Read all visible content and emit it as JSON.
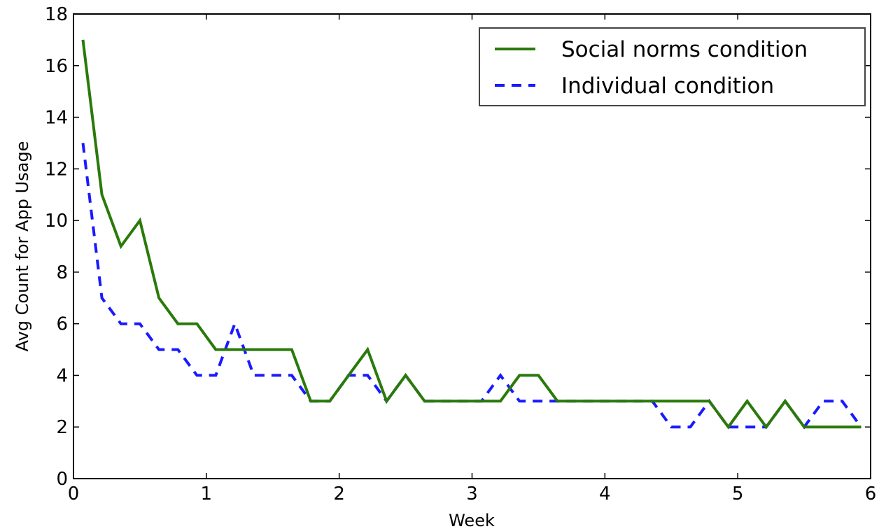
{
  "chart_data": {
    "type": "line",
    "title": "",
    "xlabel": "Week",
    "ylabel": "Avg Count for App Usage",
    "xlim": [
      0,
      6
    ],
    "ylim": [
      0,
      18
    ],
    "xticks": [
      "0",
      "1",
      "2",
      "3",
      "4",
      "5",
      "6"
    ],
    "yticks": [
      "0",
      "2",
      "4",
      "6",
      "8",
      "10",
      "12",
      "14",
      "16",
      "18"
    ],
    "grid": false,
    "legend_position": "top-right",
    "series": [
      {
        "name": "Social norms condition",
        "color": "#2a7a0a",
        "style": "solid",
        "x": [
          0.071,
          0.214,
          0.357,
          0.5,
          0.643,
          0.786,
          0.929,
          1.071,
          1.214,
          1.357,
          1.5,
          1.643,
          1.786,
          1.929,
          2.071,
          2.214,
          2.357,
          2.5,
          2.643,
          2.786,
          2.929,
          3.071,
          3.214,
          3.357,
          3.5,
          3.643,
          3.786,
          3.929,
          4.071,
          4.214,
          4.357,
          4.5,
          4.643,
          4.786,
          4.929,
          5.071,
          5.214,
          5.357,
          5.5,
          5.643,
          5.786,
          5.929
        ],
        "y": [
          17,
          11,
          9,
          10,
          7,
          6,
          6,
          5,
          5,
          5,
          5,
          5,
          3,
          3,
          4,
          5,
          3,
          4,
          3,
          3,
          3,
          3,
          3,
          4,
          4,
          3,
          3,
          3,
          3,
          3,
          3,
          3,
          3,
          3,
          2,
          3,
          2,
          3,
          2,
          2,
          2,
          2
        ]
      },
      {
        "name": "Individual condition",
        "color": "#1a1aff",
        "style": "dashed",
        "x": [
          0.071,
          0.214,
          0.357,
          0.5,
          0.643,
          0.786,
          0.929,
          1.071,
          1.214,
          1.357,
          1.5,
          1.643,
          1.786,
          1.929,
          2.071,
          2.214,
          2.357,
          2.5,
          2.643,
          2.786,
          2.929,
          3.071,
          3.214,
          3.357,
          3.5,
          3.643,
          3.786,
          3.929,
          4.071,
          4.214,
          4.357,
          4.5,
          4.643,
          4.786,
          4.929,
          5.071,
          5.214,
          5.357,
          5.5,
          5.643,
          5.786,
          5.929
        ],
        "y": [
          13,
          7,
          6,
          6,
          5,
          5,
          4,
          4,
          6,
          4,
          4,
          4,
          3,
          3,
          4,
          4,
          3,
          4,
          3,
          3,
          3,
          3,
          4,
          3,
          3,
          3,
          3,
          3,
          3,
          3,
          3,
          2,
          2,
          3,
          2,
          2,
          2,
          3,
          2,
          3,
          3,
          2
        ]
      }
    ]
  }
}
